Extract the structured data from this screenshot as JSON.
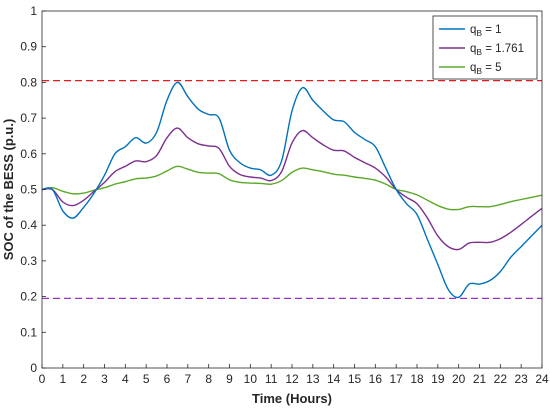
{
  "chart_data": {
    "type": "line",
    "xlabel": "Time (Hours)",
    "ylabel": "SOC of the BESS (p.u.)",
    "xlim": [
      0,
      24
    ],
    "ylim": [
      0,
      1
    ],
    "xticks": [
      0,
      1,
      2,
      3,
      4,
      5,
      6,
      7,
      8,
      9,
      10,
      11,
      12,
      13,
      14,
      15,
      16,
      17,
      18,
      19,
      20,
      21,
      22,
      23,
      24
    ],
    "yticks": [
      0,
      0.1,
      0.2,
      0.3,
      0.4,
      0.5,
      0.6,
      0.7,
      0.8,
      0.9,
      1
    ],
    "grid": false,
    "legend_position": "top-right",
    "x": [
      0,
      0.5,
      1,
      1.5,
      2,
      2.5,
      3,
      3.5,
      4,
      4.5,
      5,
      5.5,
      6,
      6.5,
      7,
      7.5,
      8,
      8.5,
      9,
      9.5,
      10,
      10.5,
      11,
      11.5,
      12,
      12.5,
      13,
      13.5,
      14,
      14.5,
      15,
      15.5,
      16,
      16.5,
      17,
      17.5,
      18,
      18.5,
      19,
      19.5,
      20,
      20.5,
      21,
      21.5,
      22,
      22.5,
      23,
      23.5,
      24
    ],
    "series": [
      {
        "name": "q",
        "name_sub": "B",
        "name_suffix": " = 1",
        "color": "#0072BD",
        "values": [
          0.5,
          0.5,
          0.44,
          0.42,
          0.45,
          0.49,
          0.54,
          0.6,
          0.62,
          0.645,
          0.63,
          0.66,
          0.75,
          0.8,
          0.76,
          0.725,
          0.71,
          0.7,
          0.61,
          0.575,
          0.56,
          0.555,
          0.54,
          0.58,
          0.72,
          0.785,
          0.75,
          0.72,
          0.695,
          0.69,
          0.66,
          0.64,
          0.62,
          0.56,
          0.5,
          0.46,
          0.43,
          0.36,
          0.29,
          0.22,
          0.198,
          0.235,
          0.235,
          0.245,
          0.27,
          0.31,
          0.34,
          0.37,
          0.4
        ]
      },
      {
        "name": "q",
        "name_sub": "B",
        "name_suffix": " = 1.761",
        "color": "#7E2F8E",
        "values": [
          0.5,
          0.5,
          0.465,
          0.455,
          0.47,
          0.495,
          0.52,
          0.55,
          0.565,
          0.58,
          0.578,
          0.595,
          0.645,
          0.672,
          0.645,
          0.628,
          0.622,
          0.615,
          0.565,
          0.542,
          0.535,
          0.532,
          0.525,
          0.55,
          0.63,
          0.665,
          0.645,
          0.625,
          0.61,
          0.608,
          0.59,
          0.575,
          0.56,
          0.535,
          0.5,
          0.478,
          0.46,
          0.42,
          0.37,
          0.34,
          0.332,
          0.35,
          0.352,
          0.352,
          0.362,
          0.38,
          0.402,
          0.425,
          0.447
        ]
      },
      {
        "name": "q",
        "name_sub": "B",
        "name_suffix": " = 5",
        "color": "#5BA829",
        "values": [
          0.5,
          0.505,
          0.495,
          0.488,
          0.49,
          0.498,
          0.505,
          0.515,
          0.522,
          0.53,
          0.532,
          0.538,
          0.552,
          0.565,
          0.557,
          0.548,
          0.546,
          0.544,
          0.527,
          0.52,
          0.518,
          0.517,
          0.515,
          0.525,
          0.548,
          0.56,
          0.555,
          0.55,
          0.543,
          0.54,
          0.535,
          0.531,
          0.526,
          0.515,
          0.5,
          0.494,
          0.485,
          0.47,
          0.455,
          0.445,
          0.444,
          0.452,
          0.452,
          0.452,
          0.458,
          0.466,
          0.472,
          0.478,
          0.484
        ]
      }
    ],
    "reference_lines": [
      {
        "y": 0.805,
        "color": "#E41A1C",
        "style": "dashed"
      },
      {
        "y": 0.195,
        "color": "#9A32CD",
        "style": "dashed"
      }
    ]
  }
}
